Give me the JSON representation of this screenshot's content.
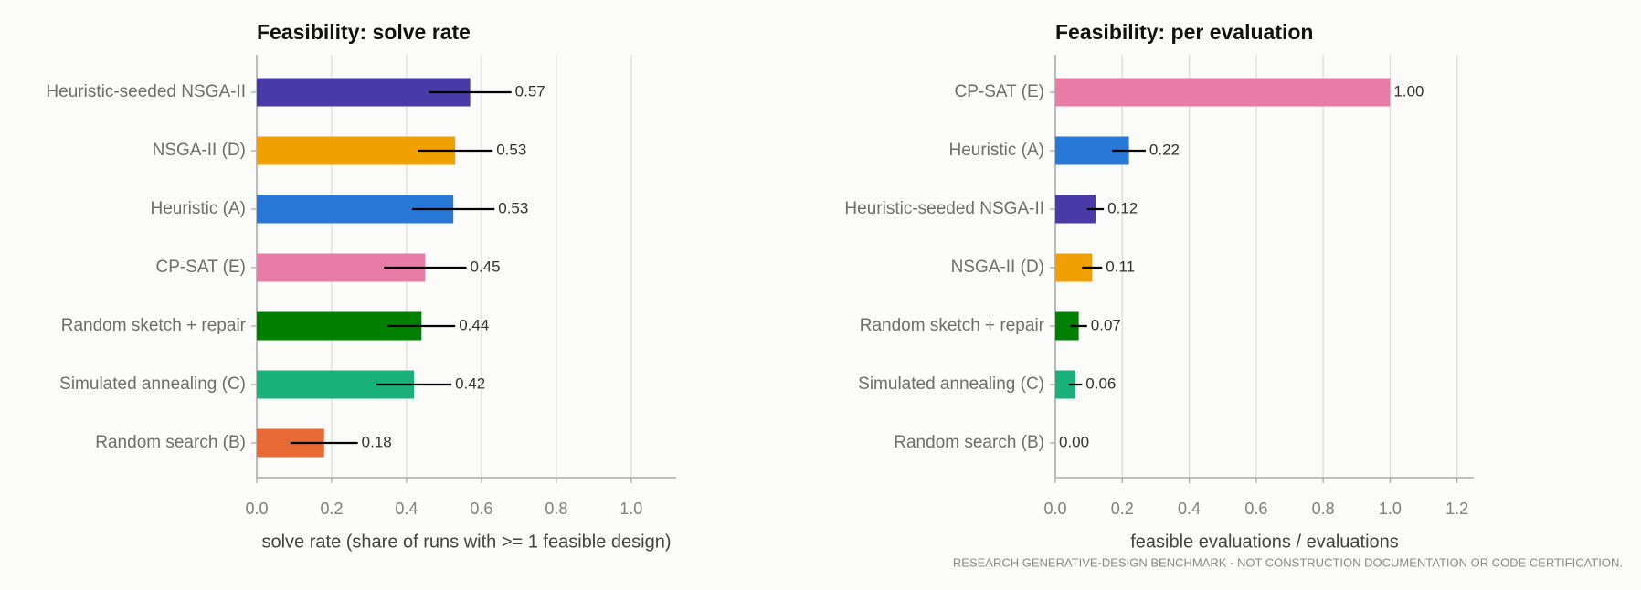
{
  "chart_data": [
    {
      "type": "barh",
      "title": "Feasibility: solve rate",
      "xlabel": "solve rate (share of runs with >= 1 feasible design)",
      "categories": [
        "Heuristic-seeded NSGA-II",
        "NSGA-II (D)",
        "Heuristic (A)",
        "CP-SAT (E)",
        "Random sketch + repair",
        "Simulated annealing (C)",
        "Random search (B)"
      ],
      "values": [
        0.57,
        0.53,
        0.525,
        0.45,
        0.44,
        0.42,
        0.18
      ],
      "value_labels": [
        "0.57",
        "0.53",
        "0.53",
        "0.45",
        "0.44",
        "0.42",
        "0.18"
      ],
      "errors": [
        0.11,
        0.1,
        0.11,
        0.11,
        0.09,
        0.1,
        0.09
      ],
      "colors": [
        "#4a3aa8",
        "#f0a000",
        "#2878d8",
        "#e87ca6",
        "#008000",
        "#1ab07a",
        "#e86a35"
      ],
      "xlim": [
        0,
        1.12
      ],
      "xticks": [
        {
          "value": 0,
          "label": "0.0"
        },
        0.2,
        0.4,
        0.6,
        0.8,
        {
          "value": 1,
          "label": "1.0"
        }
      ],
      "grid": true
    },
    {
      "type": "barh",
      "title": "Feasibility: per evaluation",
      "xlabel": "feasible evaluations / evaluations",
      "categories": [
        "CP-SAT (E)",
        "Heuristic (A)",
        "Heuristic-seeded NSGA-II",
        "NSGA-II (D)",
        "Random sketch + repair",
        "Simulated annealing (C)",
        "Random search (B)"
      ],
      "values": [
        1,
        0.22,
        0.12,
        0.11,
        0.07,
        0.06,
        0
      ],
      "value_labels": [
        "1.00",
        "0.22",
        "0.12",
        "0.11",
        "0.07",
        "0.06",
        "0.00"
      ],
      "errors": [
        null,
        0.05,
        0.025,
        0.03,
        0.025,
        0.02,
        null
      ],
      "colors": [
        "#e87ca6",
        "#2878d8",
        "#4a3aa8",
        "#f0a000",
        "#008000",
        "#1ab07a",
        "#e86a35"
      ],
      "xlim": [
        0,
        1.25
      ],
      "xticks": [
        {
          "value": 0,
          "label": "0.0"
        },
        0.2,
        0.4,
        0.6,
        0.8,
        {
          "value": 1,
          "label": "1.0"
        },
        1.2
      ],
      "grid": true
    }
  ],
  "footer": "RESEARCH GENERATIVE-DESIGN BENCHMARK - NOT CONSTRUCTION DOCUMENTATION OR CODE CERTIFICATION."
}
